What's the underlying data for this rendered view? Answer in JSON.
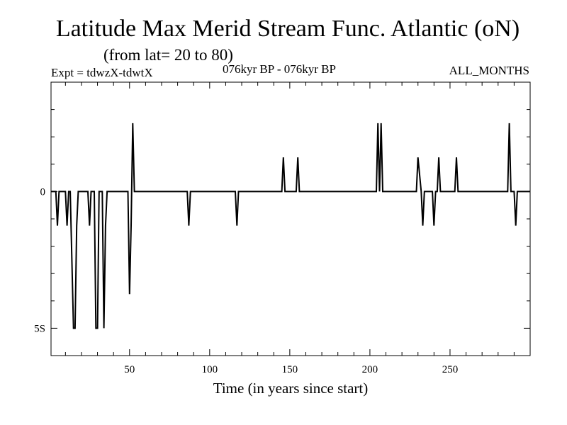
{
  "header": {
    "title": "Latitude Max Merid Stream Func. Atlantic (oN)",
    "subtitle": "(from lat= 20 to 80)",
    "expt": "Expt = tdwzX-tdwtX",
    "period": "076kyr BP - 076kyr BP",
    "months": "ALL_MONTHS"
  },
  "chart_data": {
    "type": "line",
    "title": "Latitude Max Merid Stream Func. Atlantic (oN)",
    "subtitle": "(from lat= 20 to 80)",
    "xlabel": "Time (in years since start)",
    "ylabel": "",
    "xlim": [
      1,
      300
    ],
    "ylim": [
      -6,
      4
    ],
    "x_ticks": [
      50,
      100,
      150,
      200,
      250
    ],
    "y_ticks": [
      {
        "value": 0,
        "label": "0"
      },
      {
        "value": -5,
        "label": "5S"
      }
    ],
    "grid": false,
    "line_color": "#000000",
    "series": [
      {
        "points": [
          [
            1,
            0
          ],
          [
            4,
            0
          ],
          [
            5,
            -1.25
          ],
          [
            6,
            0
          ],
          [
            10,
            0
          ],
          [
            11,
            -1.25
          ],
          [
            12,
            0
          ],
          [
            13,
            0
          ],
          [
            15,
            -5
          ],
          [
            16,
            -5
          ],
          [
            17,
            -1.25
          ],
          [
            18,
            0
          ],
          [
            24,
            0
          ],
          [
            25,
            -1.25
          ],
          [
            26,
            0
          ],
          [
            28,
            0
          ],
          [
            29,
            -5
          ],
          [
            30,
            -5
          ],
          [
            31,
            0
          ],
          [
            33,
            0
          ],
          [
            34,
            -5
          ],
          [
            35,
            -1.25
          ],
          [
            36,
            0
          ],
          [
            45,
            0
          ],
          [
            49,
            0
          ],
          [
            50,
            -3.75
          ],
          [
            51,
            -1.25
          ],
          [
            52,
            2.5
          ],
          [
            53,
            0
          ],
          [
            86,
            0
          ],
          [
            87,
            -1.25
          ],
          [
            88,
            0
          ],
          [
            116,
            0
          ],
          [
            117,
            -1.25
          ],
          [
            118,
            0
          ],
          [
            145,
            0
          ],
          [
            146,
            1.25
          ],
          [
            147,
            0
          ],
          [
            154,
            0
          ],
          [
            155,
            1.25
          ],
          [
            156,
            0
          ],
          [
            204,
            0
          ],
          [
            205,
            2.5
          ],
          [
            206,
            0
          ],
          [
            207,
            2.5
          ],
          [
            208,
            0
          ],
          [
            229,
            0
          ],
          [
            230,
            1.25
          ],
          [
            232,
            0
          ],
          [
            233,
            -1.25
          ],
          [
            234,
            0
          ],
          [
            239,
            0
          ],
          [
            240,
            -1.25
          ],
          [
            241,
            0
          ],
          [
            242,
            0
          ],
          [
            243,
            1.25
          ],
          [
            244,
            0
          ],
          [
            253,
            0
          ],
          [
            254,
            1.25
          ],
          [
            255,
            0
          ],
          [
            286,
            0
          ],
          [
            287,
            2.5
          ],
          [
            288,
            0
          ],
          [
            290,
            0
          ],
          [
            291,
            -1.25
          ],
          [
            292,
            0
          ],
          [
            300,
            0
          ]
        ]
      }
    ]
  }
}
